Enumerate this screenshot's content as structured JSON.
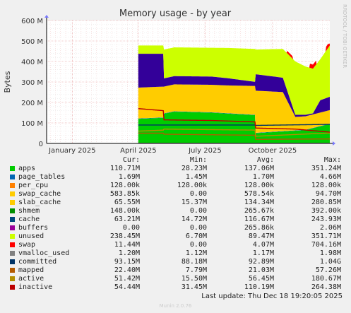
{
  "chart_data": {
    "type": "area",
    "title": "Memory usage - by year",
    "ylabel": "Bytes",
    "xlabel": "",
    "ylim": [
      0,
      600
    ],
    "y_unit": "M",
    "y_ticks": [
      "0",
      "100 M",
      "200 M",
      "300 M",
      "400 M",
      "500 M",
      "600 M"
    ],
    "x_ticks": [
      "January 2025",
      "April 2025",
      "July 2025",
      "October 2025"
    ],
    "x_start": "2024-11-27",
    "x_end": "2025-12-18",
    "grid": true,
    "watermark": "RRDTOOL / TOBI OETIKER",
    "series": [
      {
        "name": "apps",
        "color": "#00cc00",
        "kind": "stack",
        "points": [
          [
            "2025-04-01",
            120
          ],
          [
            "2025-05-05",
            125
          ],
          [
            "2025-05-06",
            145
          ],
          [
            "2025-05-20",
            155
          ],
          [
            "2025-07-10",
            150
          ],
          [
            "2025-09-07",
            138
          ],
          [
            "2025-09-08",
            50
          ],
          [
            "2025-11-15",
            65
          ],
          [
            "2025-12-18",
            95
          ]
        ]
      },
      {
        "name": "page_tables",
        "color": "#0066b3",
        "kind": "stack",
        "points": [
          [
            "2025-04-01",
            1.7
          ],
          [
            "2025-12-18",
            1.7
          ]
        ]
      },
      {
        "name": "per_cpu",
        "color": "#ff8000",
        "kind": "stack",
        "points": [
          [
            "2025-04-01",
            0.13
          ],
          [
            "2025-12-18",
            0.13
          ]
        ]
      },
      {
        "name": "swap_cache",
        "color": "#ffcc00",
        "kind": "stack",
        "points": [
          [
            "2025-04-01",
            0.5
          ],
          [
            "2025-12-18",
            0.6
          ]
        ]
      },
      {
        "name": "slab_cache",
        "color": "#ffcc00",
        "kind": "stack",
        "points": [
          [
            "2025-04-01",
            150
          ],
          [
            "2025-05-05",
            150
          ],
          [
            "2025-05-06",
            130
          ],
          [
            "2025-08-01",
            135
          ],
          [
            "2025-09-07",
            140
          ],
          [
            "2025-09-08",
            205
          ],
          [
            "2025-10-15",
            190
          ],
          [
            "2025-11-01",
            65
          ],
          [
            "2025-12-18",
            65
          ]
        ]
      },
      {
        "name": "shmem",
        "color": "#330099",
        "kind": "stack",
        "points": [
          [
            "2025-04-01",
            0.15
          ],
          [
            "2025-12-18",
            0.15
          ]
        ]
      },
      {
        "name": "cache",
        "color": "#330099",
        "kind": "stack",
        "points": [
          [
            "2025-04-01",
            165
          ],
          [
            "2025-05-05",
            160
          ],
          [
            "2025-05-06",
            40
          ],
          [
            "2025-07-10",
            40
          ],
          [
            "2025-08-01",
            35
          ],
          [
            "2025-09-07",
            20
          ],
          [
            "2025-09-08",
            80
          ],
          [
            "2025-10-15",
            70
          ],
          [
            "2025-11-01",
            10
          ],
          [
            "2025-11-25",
            5
          ],
          [
            "2025-12-05",
            60
          ],
          [
            "2025-12-18",
            65
          ]
        ]
      },
      {
        "name": "buffers",
        "color": "#990099",
        "kind": "stack",
        "points": [
          [
            "2025-04-01",
            0.5
          ],
          [
            "2025-12-18",
            0.5
          ]
        ]
      },
      {
        "name": "unused",
        "color": "#ccff00",
        "kind": "stack",
        "points": [
          [
            "2025-04-01",
            40
          ],
          [
            "2025-05-05",
            40
          ],
          [
            "2025-05-06",
            140
          ],
          [
            "2025-07-10",
            140
          ],
          [
            "2025-09-07",
            160
          ],
          [
            "2025-09-08",
            120
          ],
          [
            "2025-10-15",
            140
          ],
          [
            "2025-11-01",
            260
          ],
          [
            "2025-12-05",
            200
          ],
          [
            "2025-12-18",
            250
          ]
        ]
      },
      {
        "name": "swap",
        "color": "#ff0000",
        "kind": "stack",
        "points": [
          [
            "2025-04-01",
            0
          ],
          [
            "2025-10-20",
            0
          ],
          [
            "2025-10-21",
            12
          ],
          [
            "2025-10-28",
            12
          ],
          [
            "2025-10-29",
            0
          ],
          [
            "2025-11-20",
            0
          ],
          [
            "2025-11-21",
            20
          ],
          [
            "2025-11-29",
            20
          ],
          [
            "2025-11-30",
            0
          ],
          [
            "2025-12-12",
            0
          ],
          [
            "2025-12-13",
            20
          ],
          [
            "2025-12-16",
            20
          ],
          [
            "2025-12-17",
            11
          ]
        ]
      },
      {
        "name": "vmalloc_used",
        "color": "#808080",
        "kind": "line",
        "points": [
          [
            "2025-04-01",
            1.2
          ],
          [
            "2025-12-18",
            1.2
          ]
        ]
      },
      {
        "name": "committed",
        "color": "#003366",
        "kind": "line",
        "points": [
          [
            "2025-04-01",
            90
          ],
          [
            "2025-09-07",
            90
          ],
          [
            "2025-09-08",
            88
          ],
          [
            "2025-12-18",
            93
          ]
        ]
      },
      {
        "name": "mapped",
        "color": "#b35a00",
        "kind": "line",
        "points": [
          [
            "2025-04-01",
            50
          ],
          [
            "2025-05-05",
            50
          ],
          [
            "2025-05-06",
            45
          ],
          [
            "2025-09-07",
            40
          ],
          [
            "2025-09-08",
            20
          ],
          [
            "2025-12-18",
            22
          ]
        ]
      },
      {
        "name": "active",
        "color": "#b38f00",
        "kind": "line",
        "points": [
          [
            "2025-04-01",
            60
          ],
          [
            "2025-05-05",
            65
          ],
          [
            "2025-05-06",
            70
          ],
          [
            "2025-09-07",
            65
          ],
          [
            "2025-09-08",
            35
          ],
          [
            "2025-12-18",
            51
          ]
        ]
      },
      {
        "name": "inactive",
        "color": "#bb0000",
        "kind": "line",
        "points": [
          [
            "2025-04-01",
            170
          ],
          [
            "2025-05-05",
            160
          ],
          [
            "2025-05-06",
            115
          ],
          [
            "2025-07-10",
            112
          ],
          [
            "2025-09-07",
            105
          ],
          [
            "2025-09-08",
            75
          ],
          [
            "2025-11-01",
            70
          ],
          [
            "2025-12-18",
            55
          ]
        ]
      }
    ]
  },
  "legend": {
    "headers": {
      "cur": "Cur:",
      "min": "Min:",
      "avg": "Avg:",
      "max": "Max:"
    },
    "rows": [
      {
        "name": "apps",
        "color": "#00cc00",
        "cur": "110.71M",
        "min": "28.23M",
        "avg": "137.06M",
        "max": "351.24M"
      },
      {
        "name": "page_tables",
        "color": "#0066b3",
        "cur": "1.69M",
        "min": "1.45M",
        "avg": "1.70M",
        "max": "4.66M"
      },
      {
        "name": "per_cpu",
        "color": "#ff8000",
        "cur": "128.00k",
        "min": "128.00k",
        "avg": "128.00k",
        "max": "128.00k"
      },
      {
        "name": "swap_cache",
        "color": "#ffcc00",
        "cur": "583.85k",
        "min": "0.00",
        "avg": "578.54k",
        "max": "94.70M"
      },
      {
        "name": "slab_cache",
        "color": "#ffcc00",
        "cur": "65.55M",
        "min": "15.37M",
        "avg": "134.34M",
        "max": "280.85M"
      },
      {
        "name": "shmem",
        "color": "#008f00",
        "cur": "148.00k",
        "min": "0.00",
        "avg": "265.67k",
        "max": "392.00k"
      },
      {
        "name": "cache",
        "color": "#00487d",
        "cur": "63.21M",
        "min": "14.72M",
        "avg": "116.67M",
        "max": "243.93M"
      },
      {
        "name": "buffers",
        "color": "#990099",
        "cur": "0.00",
        "min": "0.00",
        "avg": "265.86k",
        "max": "2.06M"
      },
      {
        "name": "unused",
        "color": "#ccff00",
        "cur": "238.45M",
        "min": "6.70M",
        "avg": "89.47M",
        "max": "351.71M"
      },
      {
        "name": "swap",
        "color": "#ff0000",
        "cur": "11.44M",
        "min": "0.00",
        "avg": "4.07M",
        "max": "704.16M"
      },
      {
        "name": "vmalloc_used",
        "color": "#808080",
        "cur": "1.20M",
        "min": "1.12M",
        "avg": "1.17M",
        "max": "1.98M"
      },
      {
        "name": "committed",
        "color": "#003366",
        "cur": "93.15M",
        "min": "88.18M",
        "avg": "92.89M",
        "max": "1.04G"
      },
      {
        "name": "mapped",
        "color": "#b35a00",
        "cur": "22.40M",
        "min": "7.79M",
        "avg": "21.03M",
        "max": "57.26M"
      },
      {
        "name": "active",
        "color": "#b38f00",
        "cur": "51.42M",
        "min": "15.50M",
        "avg": "56.45M",
        "max": "180.67M"
      },
      {
        "name": "inactive",
        "color": "#bb0000",
        "cur": "54.44M",
        "min": "31.45M",
        "avg": "110.19M",
        "max": "264.38M"
      }
    ]
  },
  "last_update": "Last update: Thu Dec 18 19:20:05 2025",
  "footer": "Munin 2.0.76"
}
